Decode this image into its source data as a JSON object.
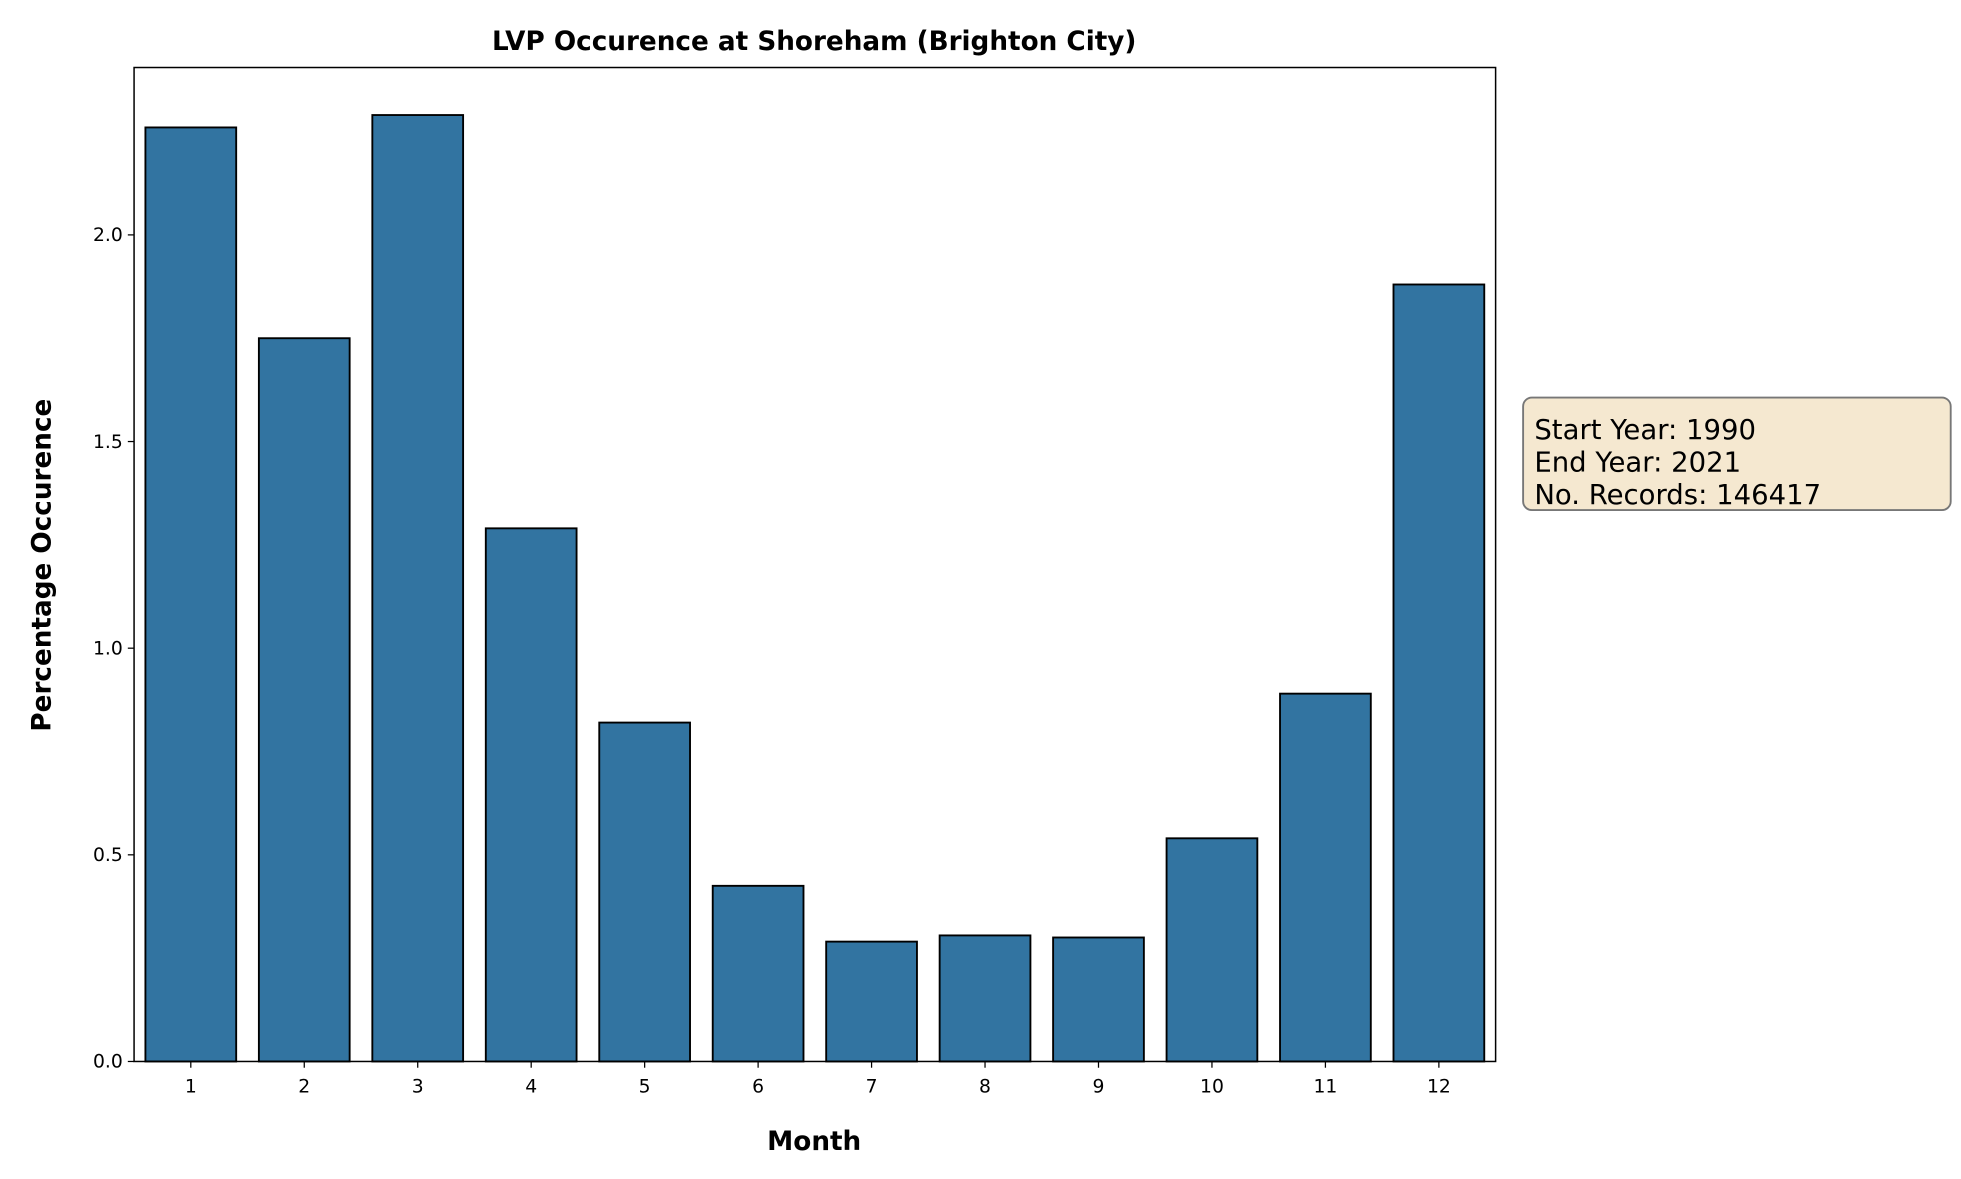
{
  "chart_data": {
    "type": "bar",
    "title": "LVP Occurence at Shoreham (Brighton City)",
    "xlabel": "Month",
    "ylabel": "Percentage Occurence",
    "categories": [
      "1",
      "2",
      "3",
      "4",
      "5",
      "6",
      "7",
      "8",
      "9",
      "10",
      "11",
      "12"
    ],
    "values": [
      2.26,
      1.75,
      2.29,
      1.29,
      0.82,
      0.425,
      0.29,
      0.305,
      0.3,
      0.54,
      0.89,
      1.88
    ],
    "ylim": [
      0,
      2.405
    ],
    "yticks": [
      "0.0",
      "0.5",
      "1.0",
      "1.5",
      "2.0"
    ],
    "grid": false,
    "bar_color": "#3274a1",
    "edge_color": "#000000",
    "annotation": {
      "lines": [
        "Start Year: 1990",
        "End Year: 2021",
        "No. Records: 146417"
      ],
      "background": "#f5e8d0",
      "placement": "right"
    }
  }
}
